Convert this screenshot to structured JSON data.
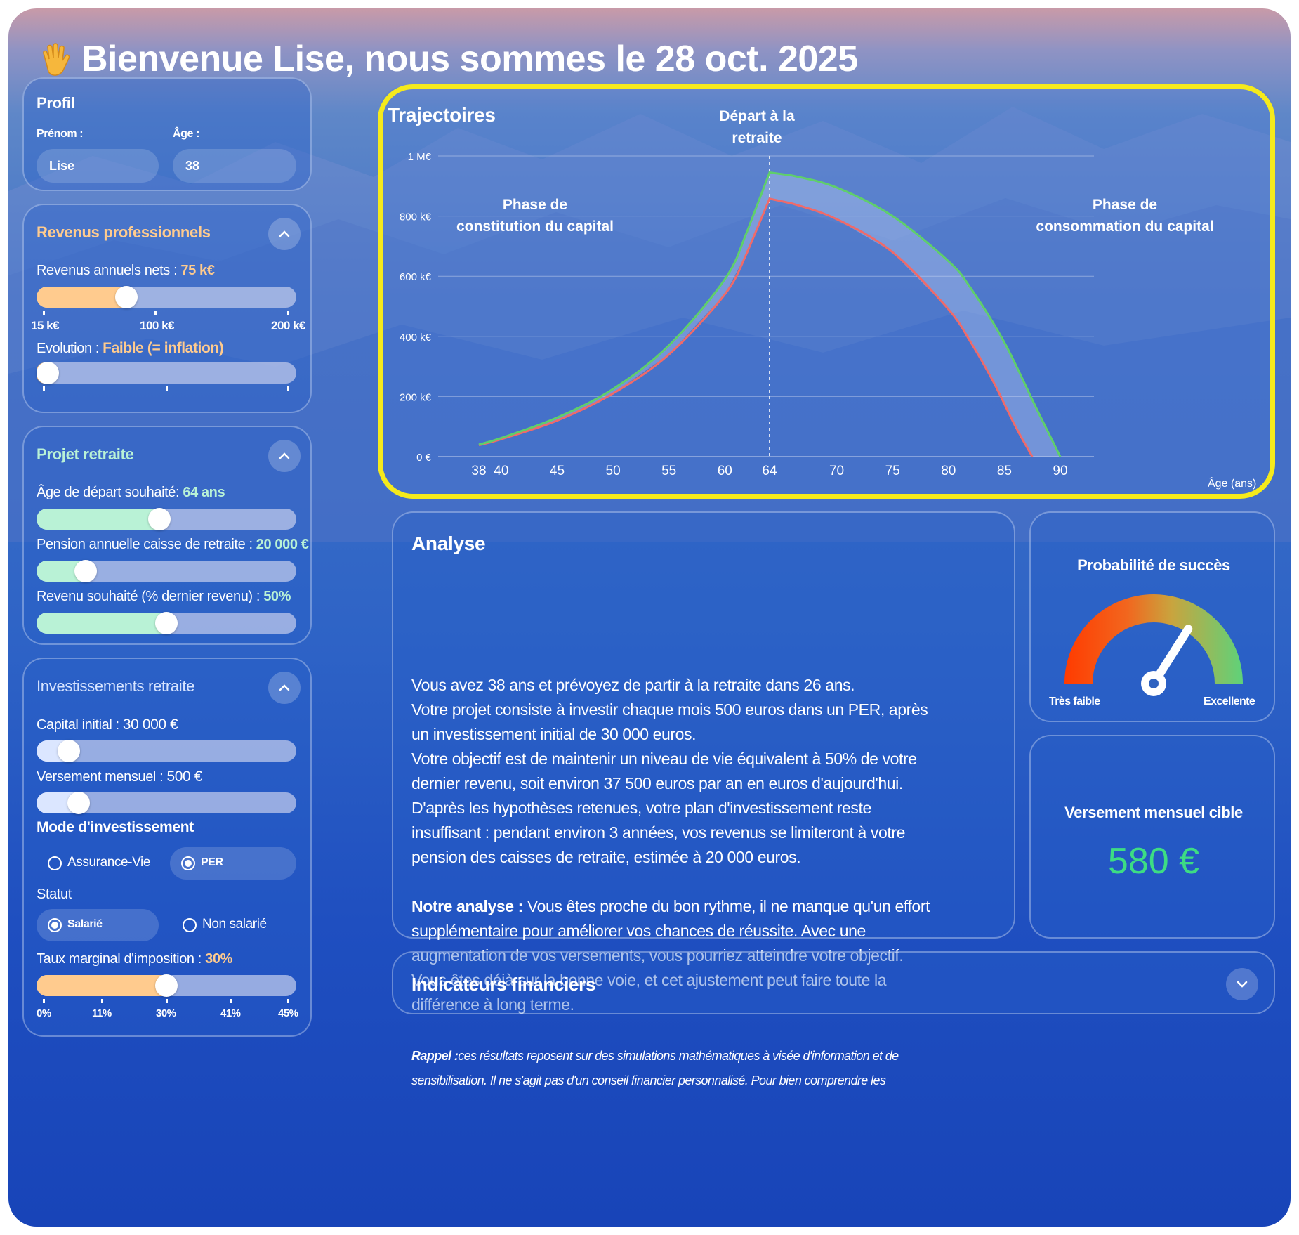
{
  "header": {
    "greeting": "Bienvenue Lise, nous sommes le 28 oct. 2025",
    "icon": "waving-hand-icon"
  },
  "profil": {
    "title": "Profil",
    "prenom_label": "Prénom :",
    "age_label": "Âge :",
    "prenom_value": "Lise",
    "age_value": "38"
  },
  "revenus": {
    "title": "Revenus professionnels",
    "annual_label": "Revenus annuels nets :",
    "annual_value": "75 k€",
    "annual_fraction": 0.33,
    "scale": [
      "15 k€",
      "100 k€",
      "200 k€"
    ],
    "evolution_label": "Evolution :",
    "evolution_value": "Faible (= inflation)",
    "evolution_fraction": 0.0
  },
  "projet": {
    "title": "Projet retraite",
    "age_label": "Âge de départ souhaité:",
    "age_value": "64 ans",
    "age_fraction": 0.47,
    "pension_label": "Pension annuelle caisse de retraite :",
    "pension_value": "20 000 €",
    "pension_fraction": 0.16,
    "revenu_label": "Revenu souhaité (% dernier revenu) :",
    "revenu_value": "50%",
    "revenu_fraction": 0.5
  },
  "invest": {
    "title": "Investissements retraite",
    "capital_label": "Capital initial :",
    "capital_value": "30 000 €",
    "capital_fraction": 0.09,
    "versement_label": "Versement mensuel :",
    "versement_value": "500 €",
    "versement_fraction": 0.13,
    "mode_title": "Mode d'investissement",
    "mode_options": [
      "Assurance-Vie",
      "PER"
    ],
    "mode_selected": "PER",
    "statut_title": "Statut",
    "statut_options": [
      "Salarié",
      "Non salarié"
    ],
    "statut_selected": "Salarié",
    "taux_label": "Taux marginal d'imposition :",
    "taux_value": "30%",
    "taux_fraction": 0.5,
    "taux_scale": [
      "0%",
      "11%",
      "30%",
      "41%",
      "45%"
    ]
  },
  "chart": {
    "title": "Trajectoires",
    "retirement_label_line1": "Départ à la",
    "retirement_label_line2": "retraite",
    "phase1_line1": "Phase de",
    "phase1_line2": "constitution du capital",
    "phase2_line1": "Phase de",
    "phase2_line2": "consommation du capital",
    "xlabel": "Âge (ans)"
  },
  "chart_data": {
    "type": "line",
    "title": "Trajectoires",
    "xlabel": "Âge (ans)",
    "ylabel": "",
    "xlim": [
      38,
      90
    ],
    "ylim": [
      0,
      1000000
    ],
    "x_ticks": [
      38,
      40,
      45,
      50,
      55,
      60,
      64,
      70,
      75,
      80,
      85,
      90
    ],
    "y_ticks": [
      0,
      200000,
      400000,
      600000,
      800000,
      1000000
    ],
    "y_tick_labels": [
      "0 €",
      "200 k€",
      "400 k€",
      "600 k€",
      "800 k€",
      "1 M€"
    ],
    "vertical_line_x": 64,
    "grid": true,
    "band_between_series": true,
    "series": [
      {
        "color": "#5fcf6a",
        "x": [
          38,
          40,
          45,
          50,
          55,
          60,
          62,
          64,
          66,
          70,
          75,
          80,
          82,
          85,
          88,
          90
        ],
        "y": [
          40000,
          62000,
          130000,
          225000,
          370000,
          590000,
          750000,
          945000,
          935000,
          895000,
          800000,
          650000,
          560000,
          380000,
          150000,
          0
        ]
      },
      {
        "color": "#ef6a6a",
        "x": [
          38,
          40,
          45,
          50,
          55,
          60,
          62,
          64,
          66,
          70,
          75,
          80,
          82,
          84,
          86,
          87.5
        ],
        "y": [
          38000,
          58000,
          120000,
          210000,
          340000,
          540000,
          680000,
          858000,
          842000,
          790000,
          680000,
          490000,
          380000,
          250000,
          100000,
          0
        ]
      }
    ]
  },
  "analyse": {
    "title": "Analyse",
    "p1": [
      "Vous avez 38 ans et prévoyez de partir à la retraite dans 26 ans.",
      "Votre projet consiste à investir chaque mois 500 euros dans un PER, après",
      "un investissement initial de 30 000 euros.",
      "Votre objectif est de maintenir un niveau de vie équivalent à 50% de votre",
      "dernier revenu, soit environ 37 500 euros par an en euros d'aujourd'hui.",
      "D'après les hypothèses retenues, votre plan d'investissement reste",
      "insuffisant : pendant environ 3 années, vos revenus se limiteront à votre",
      "pension des caisses de retraite, estimée à 20 000 euros."
    ],
    "p2_bold": "Notre analyse :",
    "p2": [
      " Vous êtes proche du bon rythme, il ne manque qu'un effort",
      "supplémentaire pour améliorer vos chances de réussite. Avec une",
      "augmentation de vos versements, vous pourriez atteindre votre objectif.",
      "Vous êtes déjà sur la bonne voie, et cet ajustement peut faire toute la",
      "différence à long terme."
    ],
    "note_bold": "Rappel :",
    "note": [
      "ces résultats reposent sur des simulations mathématiques à visée d'information et de",
      "sensibilisation. Il ne s'agit pas d'un conseil financier personnalisé. Pour bien comprendre les"
    ]
  },
  "probabilite": {
    "title": "Probabilité de succès",
    "low_label": "Très faible",
    "high_label": "Excellente",
    "level_fraction": 0.68
  },
  "versement_cible": {
    "title": "Versement mensuel cible",
    "value": "580 €",
    "value_color": "#3ddc84"
  },
  "indicateurs": {
    "title": "Indicateurs financiers"
  },
  "colors": {
    "accent_orange": "#ffcb8e",
    "accent_green": "#b9f2d6",
    "highlight": "#f5ea1c"
  }
}
